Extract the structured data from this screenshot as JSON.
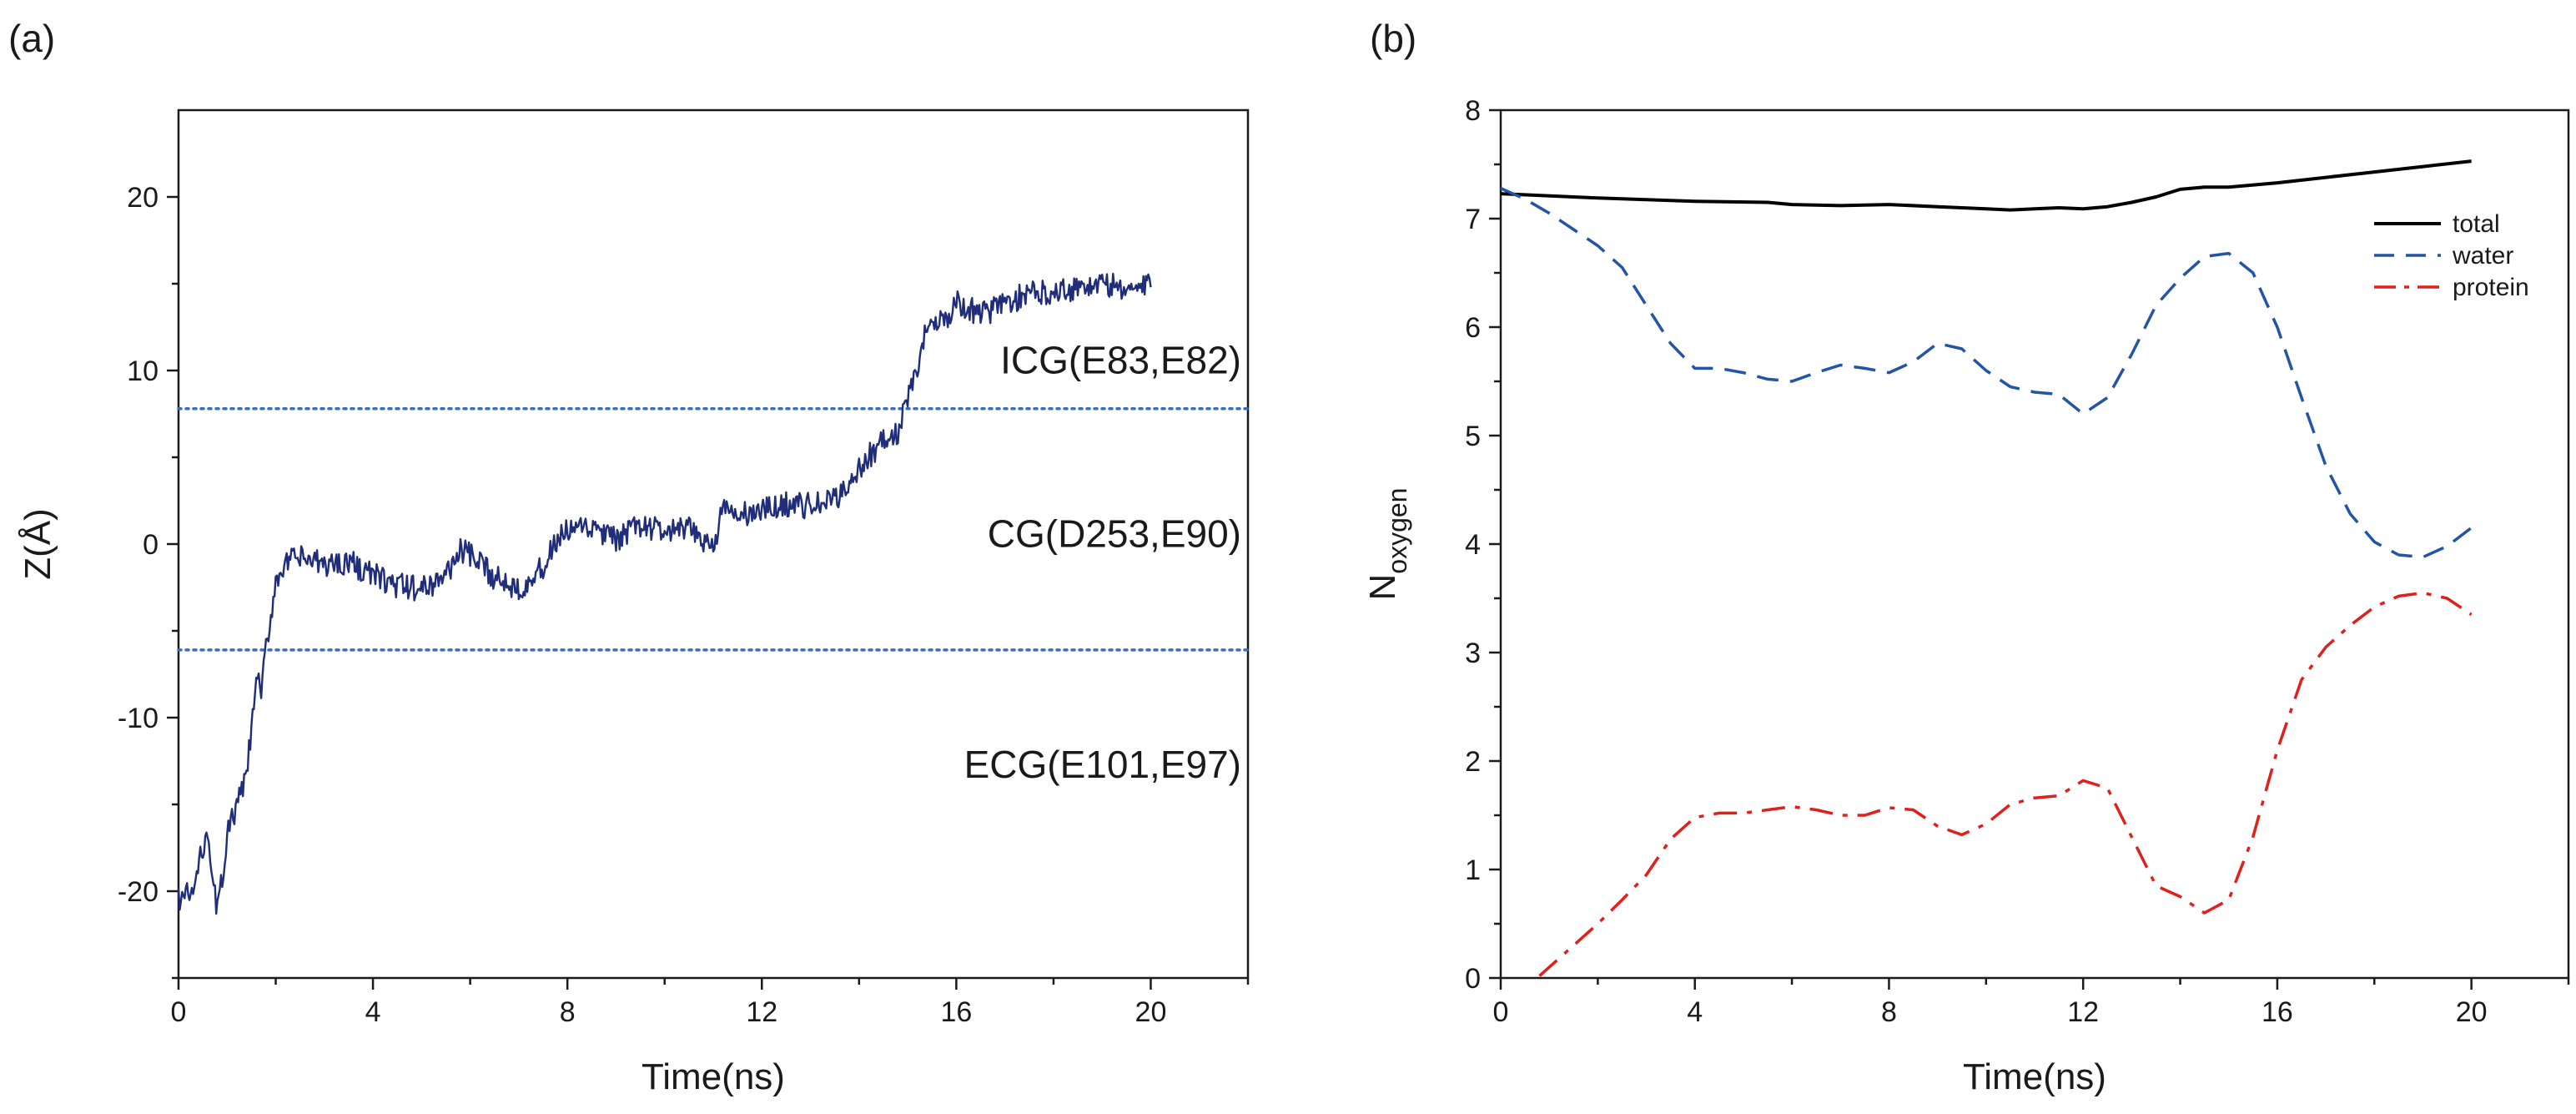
{
  "chart_data": [
    {
      "type": "line",
      "panel_label": "(a)",
      "xlabel": "Time(ns)",
      "ylabel": "Z(Å)",
      "xlim": [
        0,
        22
      ],
      "ylim_inverted": [
        25,
        -25
      ],
      "x_tick_labels": [
        "0",
        "4",
        "8",
        "12",
        "16",
        "20"
      ],
      "y_ticks": [
        {
          "value": -20,
          "label": "-20"
        },
        {
          "value": -10,
          "label": "-10"
        },
        {
          "value": 0,
          "label": "0"
        },
        {
          "value": 10,
          "label": "10"
        },
        {
          "value": 20,
          "label": "20"
        }
      ],
      "grid": false,
      "line_color": "#1f2d7a",
      "ref_line_color": "#3a6ec2",
      "reference_lines": [
        -6.1,
        7.8
      ],
      "regions": [
        {
          "label": "ECG(E101,E97)",
          "z": -12.7
        },
        {
          "label": "CG(D253,E90)",
          "z": 0.6
        },
        {
          "label": "ICG(E83,E82)",
          "z": 10.6
        }
      ],
      "series": [
        {
          "name": "Z",
          "x": [
            0,
            0.3,
            0.5,
            0.6,
            0.7,
            0.8,
            0.9,
            1.0,
            1.2,
            1.4,
            1.5,
            1.6,
            1.7,
            1.8,
            1.9,
            2.0,
            2.1,
            2.3,
            2.5,
            3.0,
            3.5,
            4.0,
            4.5,
            5.0,
            5.5,
            5.8,
            6.0,
            6.5,
            7.0,
            7.5,
            7.8,
            8.0,
            8.5,
            9.0,
            9.5,
            10.0,
            10.5,
            11.0,
            11.2,
            11.5,
            12.0,
            12.5,
            13.0,
            13.5,
            14.0,
            14.3,
            14.5,
            14.8,
            15.0,
            15.2,
            15.3,
            15.5,
            15.8,
            16.0,
            16.5,
            17.0,
            17.5,
            18.0,
            18.5,
            19.0,
            19.5,
            20.0
          ],
          "y": [
            -20.4,
            -20.1,
            -17.5,
            -16.2,
            -19.8,
            -20.9,
            -19.3,
            -16.7,
            -15.2,
            -13.3,
            -10.8,
            -7.6,
            -8.6,
            -6.1,
            -4.1,
            -2.1,
            -1.5,
            -1.0,
            -0.8,
            -1.2,
            -1.0,
            -1.8,
            -2.4,
            -2.6,
            -1.8,
            -0.3,
            -0.7,
            -1.9,
            -2.5,
            -1.4,
            0.3,
            0.7,
            0.9,
            0.2,
            1.1,
            0.7,
            0.8,
            -0.1,
            2.0,
            1.6,
            1.9,
            2.3,
            2.2,
            2.5,
            4.3,
            5.4,
            5.9,
            6.4,
            8.5,
            9.7,
            11.7,
            13.1,
            12.9,
            13.9,
            13.2,
            13.9,
            14.4,
            14.6,
            14.8,
            15.0,
            14.7,
            14.8
          ]
        }
      ]
    },
    {
      "type": "line",
      "panel_label": "(b)",
      "xlabel": "Time(ns)",
      "ylabel_main": "N",
      "ylabel_sub": "oxygen",
      "xlim": [
        0,
        22
      ],
      "ylim": [
        0,
        8
      ],
      "x_tick_labels": [
        "0",
        "4",
        "8",
        "12",
        "16",
        "20"
      ],
      "y_tick_labels": [
        "0",
        "1",
        "2",
        "3",
        "4",
        "5",
        "6",
        "7",
        "8"
      ],
      "grid": false,
      "legend_position": "top-right",
      "series": [
        {
          "name": "total",
          "color": "#000000",
          "dash": "solid",
          "x": [
            0,
            2,
            4,
            5.5,
            6,
            7,
            8,
            9,
            10,
            10.5,
            11,
            11.5,
            12,
            12.5,
            13,
            13.5,
            14,
            14.5,
            15,
            16,
            17,
            18,
            19,
            20
          ],
          "y": [
            7.23,
            7.19,
            7.16,
            7.15,
            7.13,
            7.12,
            7.13,
            7.11,
            7.09,
            7.08,
            7.09,
            7.1,
            7.09,
            7.11,
            7.15,
            7.2,
            7.27,
            7.29,
            7.29,
            7.33,
            7.38,
            7.43,
            7.48,
            7.53
          ]
        },
        {
          "name": "water",
          "color": "#2355a6",
          "dash": "dashed",
          "x": [
            0,
            0.5,
            1,
            1.5,
            2,
            2.5,
            3,
            3.5,
            4,
            4.5,
            5,
            5.5,
            6,
            6.5,
            7,
            7.5,
            8,
            8.5,
            9,
            9.5,
            10,
            10.5,
            11,
            11.5,
            12,
            12.5,
            13,
            13.5,
            14,
            14.5,
            15,
            15.5,
            16,
            16.5,
            17,
            17.5,
            18,
            18.5,
            19,
            19.5,
            20
          ],
          "y": [
            7.28,
            7.18,
            7.05,
            6.9,
            6.75,
            6.55,
            6.2,
            5.85,
            5.62,
            5.62,
            5.58,
            5.52,
            5.5,
            5.58,
            5.65,
            5.62,
            5.58,
            5.68,
            5.85,
            5.8,
            5.6,
            5.45,
            5.4,
            5.38,
            5.2,
            5.35,
            5.75,
            6.2,
            6.45,
            6.65,
            6.68,
            6.5,
            6.0,
            5.35,
            4.72,
            4.28,
            4.02,
            3.9,
            3.88,
            3.98,
            4.15
          ]
        },
        {
          "name": "protein",
          "color": "#e0201b",
          "dash": "dashdot",
          "x": [
            0.8,
            1.5,
            2,
            2.5,
            3,
            3.5,
            4,
            4.5,
            5,
            5.5,
            6,
            6.5,
            7,
            7.5,
            8,
            8.5,
            9,
            9.5,
            10,
            10.5,
            11,
            11.5,
            12,
            12.5,
            13,
            13.5,
            14,
            14.5,
            15,
            15.5,
            16,
            16.5,
            17,
            17.5,
            18,
            18.5,
            19,
            19.5,
            20
          ],
          "y": [
            0.02,
            0.3,
            0.5,
            0.72,
            0.95,
            1.28,
            1.48,
            1.52,
            1.52,
            1.55,
            1.58,
            1.55,
            1.5,
            1.5,
            1.57,
            1.55,
            1.4,
            1.32,
            1.42,
            1.6,
            1.66,
            1.68,
            1.82,
            1.75,
            1.3,
            0.85,
            0.75,
            0.6,
            0.72,
            1.3,
            2.1,
            2.75,
            3.05,
            3.25,
            3.42,
            3.52,
            3.55,
            3.5,
            3.35
          ]
        }
      ]
    }
  ]
}
